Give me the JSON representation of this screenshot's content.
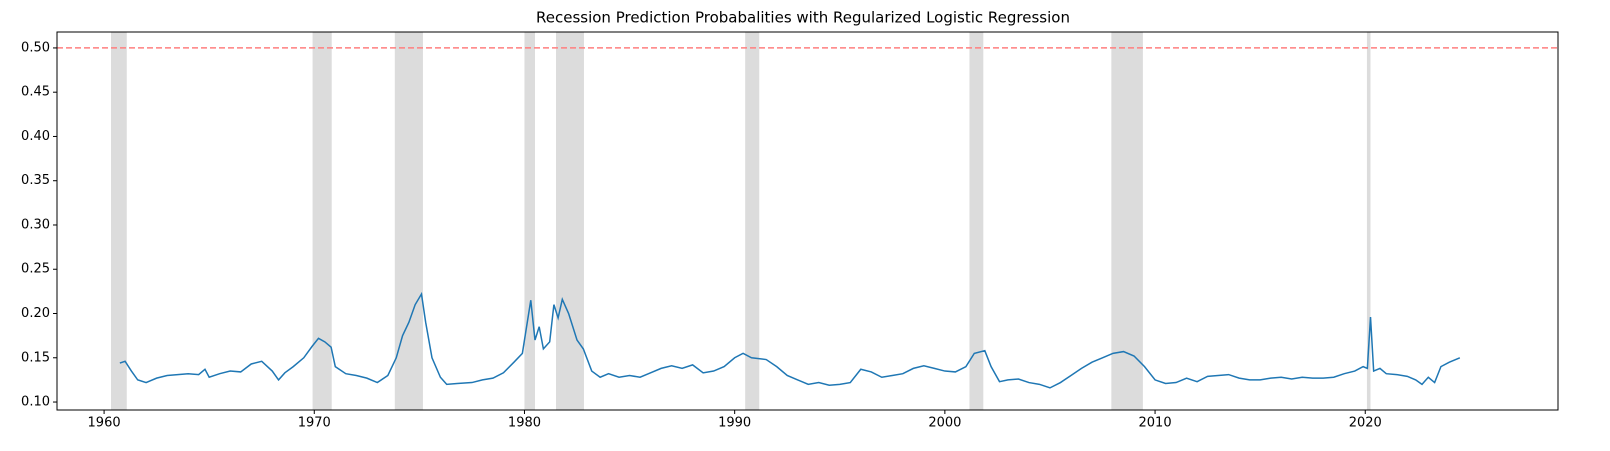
{
  "chart_data": {
    "type": "line",
    "title": "Recession Prediction Probabalities with Regularized Logistic Regression",
    "x": [
      1960.75,
      1961.0,
      1961.3,
      1961.6,
      1962.0,
      1962.5,
      1963.0,
      1963.5,
      1964.0,
      1964.5,
      1964.8,
      1965.0,
      1965.5,
      1966.0,
      1966.5,
      1967.0,
      1967.5,
      1968.0,
      1968.3,
      1968.6,
      1969.0,
      1969.5,
      1969.9,
      1970.2,
      1970.5,
      1970.8,
      1971.0,
      1971.5,
      1972.0,
      1972.5,
      1973.0,
      1973.5,
      1973.9,
      1974.2,
      1974.5,
      1974.8,
      1975.1,
      1975.3,
      1975.6,
      1976.0,
      1976.3,
      1976.8,
      1977.5,
      1978.0,
      1978.5,
      1979.0,
      1979.5,
      1979.9,
      1980.1,
      1980.3,
      1980.5,
      1980.7,
      1980.9,
      1981.2,
      1981.4,
      1981.6,
      1981.8,
      1982.1,
      1982.5,
      1982.8,
      1983.2,
      1983.6,
      1984.0,
      1984.5,
      1985.0,
      1985.5,
      1986.0,
      1986.5,
      1987.0,
      1987.5,
      1988.0,
      1988.5,
      1989.0,
      1989.5,
      1990.0,
      1990.4,
      1990.8,
      1991.5,
      1992.0,
      1992.5,
      1993.0,
      1993.5,
      1994.0,
      1994.5,
      1995.0,
      1995.5,
      1996.0,
      1996.5,
      1997.0,
      1997.5,
      1998.0,
      1998.5,
      1999.0,
      1999.5,
      2000.0,
      2000.5,
      2001.0,
      2001.4,
      2001.9,
      2002.2,
      2002.6,
      2003.0,
      2003.5,
      2004.0,
      2004.5,
      2005.0,
      2005.5,
      2006.0,
      2006.5,
      2007.0,
      2007.5,
      2008.0,
      2008.5,
      2009.0,
      2009.5,
      2010.0,
      2010.5,
      2011.0,
      2011.5,
      2012.0,
      2012.5,
      2013.0,
      2013.5,
      2014.0,
      2014.5,
      2015.0,
      2015.5,
      2016.0,
      2016.5,
      2017.0,
      2017.5,
      2018.0,
      2018.5,
      2019.0,
      2019.5,
      2019.9,
      2020.1,
      2020.25,
      2020.4,
      2020.7,
      2021.0,
      2021.5,
      2022.0,
      2022.4,
      2022.7,
      2023.0,
      2023.3,
      2023.6,
      2024.0,
      2024.5
    ],
    "series": [
      {
        "color": "#1f77b4",
        "values": [
          0.144,
          0.146,
          0.135,
          0.125,
          0.122,
          0.127,
          0.13,
          0.131,
          0.132,
          0.131,
          0.137,
          0.128,
          0.132,
          0.135,
          0.134,
          0.143,
          0.146,
          0.135,
          0.125,
          0.133,
          0.14,
          0.15,
          0.163,
          0.172,
          0.168,
          0.162,
          0.14,
          0.132,
          0.13,
          0.127,
          0.122,
          0.13,
          0.15,
          0.175,
          0.19,
          0.21,
          0.222,
          0.19,
          0.15,
          0.128,
          0.12,
          0.121,
          0.122,
          0.125,
          0.127,
          0.133,
          0.145,
          0.155,
          0.185,
          0.215,
          0.17,
          0.185,
          0.16,
          0.168,
          0.21,
          0.195,
          0.216,
          0.2,
          0.17,
          0.16,
          0.135,
          0.128,
          0.132,
          0.128,
          0.13,
          0.128,
          0.133,
          0.138,
          0.141,
          0.138,
          0.142,
          0.133,
          0.135,
          0.14,
          0.15,
          0.155,
          0.15,
          0.148,
          0.14,
          0.13,
          0.125,
          0.12,
          0.122,
          0.119,
          0.12,
          0.122,
          0.137,
          0.134,
          0.128,
          0.13,
          0.132,
          0.138,
          0.141,
          0.138,
          0.135,
          0.134,
          0.14,
          0.155,
          0.158,
          0.14,
          0.123,
          0.125,
          0.126,
          0.122,
          0.12,
          0.116,
          0.122,
          0.13,
          0.138,
          0.145,
          0.15,
          0.155,
          0.157,
          0.152,
          0.14,
          0.125,
          0.121,
          0.122,
          0.127,
          0.123,
          0.129,
          0.13,
          0.131,
          0.127,
          0.125,
          0.125,
          0.127,
          0.128,
          0.126,
          0.128,
          0.127,
          0.127,
          0.128,
          0.132,
          0.135,
          0.14,
          0.138,
          0.196,
          0.135,
          0.138,
          0.132,
          0.131,
          0.129,
          0.125,
          0.12,
          0.128,
          0.122,
          0.14,
          0.145,
          0.15
        ]
      }
    ],
    "recessions": [
      [
        1960.33,
        1961.08
      ],
      [
        1969.92,
        1970.83
      ],
      [
        1973.83,
        1975.17
      ],
      [
        1980.0,
        1980.5
      ],
      [
        1981.5,
        1982.83
      ],
      [
        1990.5,
        1991.17
      ],
      [
        2001.17,
        2001.83
      ],
      [
        2007.92,
        2009.42
      ],
      [
        2020.08,
        2020.25
      ]
    ],
    "recession_color": "#dcdcdc",
    "threshold": 0.5,
    "threshold_color": "#ff7f7f",
    "xlim": [
      1957.76,
      2029.17
    ],
    "xticks": [
      1960,
      1970,
      1980,
      1990,
      2000,
      2010,
      2020
    ],
    "ylim": [
      0.091,
      0.518
    ],
    "yticks": [
      {
        "value": 0.1,
        "label": "0.10"
      },
      0.15,
      {
        "value": 0.2,
        "label": "0.20"
      },
      0.25,
      {
        "value": 0.3,
        "label": "0.30"
      },
      0.35,
      {
        "value": 0.4,
        "label": "0.40"
      },
      0.45,
      {
        "value": 0.5,
        "label": "0.50"
      }
    ]
  }
}
